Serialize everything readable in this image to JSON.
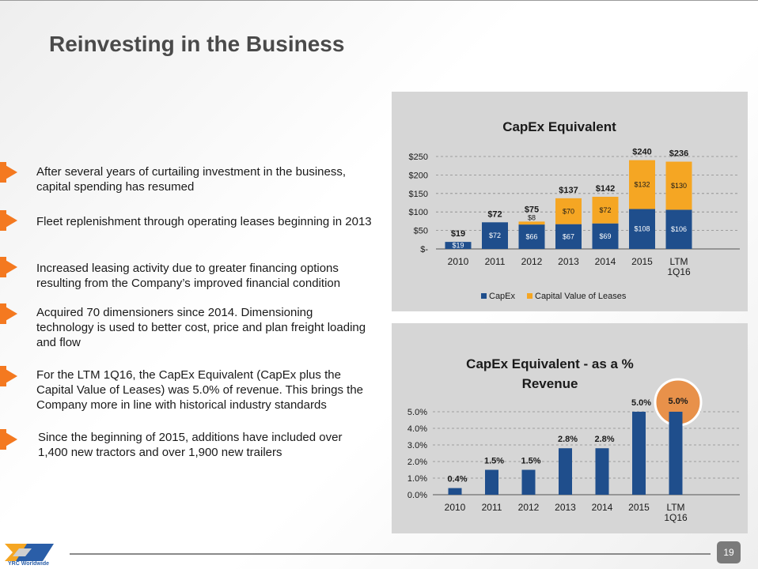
{
  "slide": {
    "title": "Reinvesting in the Business",
    "page_number": "19",
    "logo_text": "YRC Worldwide"
  },
  "bullets": [
    "After several years of curtailing investment in the business, capital spending has resumed",
    "Fleet replenishment through operating leases beginning in 2013",
    "Increased leasing activity due to greater financing options resulting from the Company’s improved financial condition",
    "Acquired 70 dimensioners since 2014.  Dimensioning technology is used to better cost, price and plan freight loading and flow",
    "For the LTM 1Q16, the CapEx Equivalent (CapEx plus the Capital Value of Leases) was 5.0% of revenue. This brings the Company more in line with historical industry standards",
    "Since the beginning of 2015, additions have included over 1,400 new tractors and over 1,900 new trailers"
  ],
  "colors": {
    "capex": "#1f4e8c",
    "leases": "#f5a623",
    "bullet_accent": "#f47920",
    "highlight": "#e8914a",
    "panel": "#d6d6d6"
  },
  "chart_data": [
    {
      "type": "bar",
      "stacked": true,
      "title": "CapEx Equivalent",
      "categories": [
        "2010",
        "2011",
        "2012",
        "2013",
        "2014",
        "2015",
        "LTM\n1Q16"
      ],
      "series": [
        {
          "name": "CapEx",
          "values": [
            19,
            72,
            66,
            67,
            69,
            108,
            106
          ],
          "labels": [
            "$19",
            "$72",
            "$66",
            "$67",
            "$69",
            "$108",
            "$106"
          ]
        },
        {
          "name": "Capital Value of Leases",
          "values": [
            0,
            0,
            8,
            70,
            72,
            132,
            130
          ],
          "labels": [
            "",
            "",
            "$8",
            "$70",
            "$72",
            "$132",
            "$130"
          ]
        }
      ],
      "totals": [
        "$19",
        "$72",
        "$75",
        "$137",
        "$142",
        "$240",
        "$236"
      ],
      "ylim": [
        0,
        250
      ],
      "yticks": [
        0,
        50,
        100,
        150,
        200,
        250
      ],
      "ytick_labels": [
        "$-",
        "$50",
        "$100",
        "$150",
        "$200",
        "$250"
      ],
      "grid": true,
      "legend": "bottom"
    },
    {
      "type": "bar",
      "title": "CapEx Equivalent - as a % Revenue",
      "categories": [
        "2010",
        "2011",
        "2012",
        "2013",
        "2014",
        "2015",
        "LTM\n1Q16"
      ],
      "values": [
        0.4,
        1.5,
        1.5,
        2.8,
        2.8,
        5.0,
        5.0
      ],
      "labels": [
        "0.4%",
        "1.5%",
        "1.5%",
        "2.8%",
        "2.8%",
        "5.0%",
        "5.0%"
      ],
      "ylim": [
        0,
        5
      ],
      "yticks": [
        0,
        1,
        2,
        3,
        4,
        5
      ],
      "ytick_labels": [
        "0.0%",
        "1.0%",
        "2.0%",
        "3.0%",
        "4.0%",
        "5.0%"
      ],
      "highlight_category": "LTM\n1Q16",
      "grid": true
    }
  ]
}
